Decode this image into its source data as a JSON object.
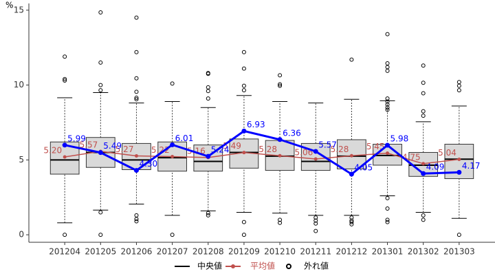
{
  "chart_data": {
    "type": "box",
    "y_label": "%",
    "categories": [
      "201204",
      "201205",
      "201206",
      "201207",
      "201208",
      "201209",
      "201210",
      "201211",
      "201212",
      "201301",
      "201302",
      "201303"
    ],
    "ylim": [
      -0.5,
      15.45
    ],
    "yticks": [
      0,
      5,
      10,
      15
    ],
    "grid": false,
    "boxes": {
      "name": "中央値",
      "color": "#000000",
      "fill": "#d9d9d9",
      "whisker_low": [
        0.8,
        1.65,
        2.05,
        1.3,
        1.6,
        1.5,
        1.45,
        1.3,
        1.3,
        2.6,
        1.5,
        1.1
      ],
      "q1": [
        4.05,
        4.5,
        4.35,
        4.25,
        4.25,
        4.45,
        4.3,
        4.3,
        4.4,
        4.65,
        3.9,
        3.75
      ],
      "median": [
        5.0,
        5.5,
        5.0,
        5.15,
        4.9,
        5.5,
        5.25,
        4.9,
        5.25,
        5.3,
        4.65,
        5.05
      ],
      "q3": [
        6.2,
        6.5,
        6.1,
        6.2,
        6.0,
        6.4,
        6.3,
        6.1,
        6.35,
        6.05,
        5.5,
        6.05
      ],
      "whisker_high": [
        9.15,
        9.5,
        8.8,
        8.9,
        8.5,
        9.3,
        8.9,
        8.8,
        9.05,
        8.95,
        7.55,
        8.6
      ]
    },
    "outliers": {
      "name": "外れ値",
      "color": "#000000",
      "values": [
        [
          11.9,
          10.4,
          10.3,
          0
        ],
        [
          14.85,
          11.5,
          10.0,
          9.65,
          1.5,
          0
        ],
        [
          14.5,
          12.2,
          10.45,
          9.55,
          9.15,
          9.05,
          1.3,
          1.05,
          0.9
        ],
        [
          10.1,
          0
        ],
        [
          10.8,
          10.75,
          9.85,
          9.6,
          9.1,
          1.45,
          1.3
        ],
        [
          12.2,
          11.1,
          9.95,
          9.65,
          0.85,
          0
        ],
        [
          10.65,
          10.05,
          9.95,
          1.0,
          0.8
        ],
        [
          1.15,
          0.95,
          0.75,
          0.25
        ],
        [
          11.7,
          1.15,
          0.95,
          0.85,
          0.7
        ],
        [
          13.4,
          11.45,
          11.2,
          10.95,
          9.1,
          8.9,
          8.7,
          8.5,
          8.35,
          2.45,
          1.75,
          1.0,
          0.85
        ],
        [
          11.3,
          10.15,
          9.45,
          8.25,
          7.95,
          1.3,
          1.0
        ],
        [
          10.2,
          9.95,
          9.65,
          0
        ]
      ]
    },
    "series": [
      {
        "name": "平均値",
        "color": "#c0504d",
        "values": [
          5.2,
          5.57,
          5.27,
          5.22,
          5.16,
          5.49,
          5.28,
          5.06,
          5.28,
          5.45,
          4.75,
          5.04
        ],
        "value_labels": [
          "5.20",
          "5.57",
          "5.27",
          "5.22",
          "5.16",
          "5.49",
          "5.28",
          "5.06",
          "5.28",
          "5.45",
          "4.75",
          "5.04"
        ]
      },
      {
        "color": "#0000ff",
        "values": [
          5.99,
          5.49,
          4.3,
          6.01,
          5.24,
          6.93,
          6.36,
          5.57,
          4.05,
          5.98,
          4.09,
          4.17
        ],
        "value_labels": [
          "5.99",
          "5.49",
          "4.30",
          "6.01",
          "5.24",
          "6.93",
          "6.36",
          "5.57",
          "4.05",
          "5.98",
          "4.09",
          "4.17"
        ]
      }
    ]
  }
}
